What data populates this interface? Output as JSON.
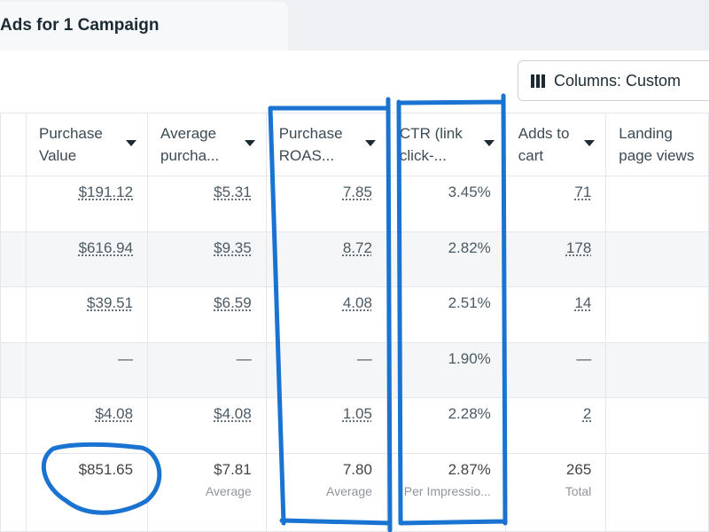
{
  "tab": {
    "title": "Ads for 1 Campaign"
  },
  "toolbar": {
    "columns_label": "Columns: Custom"
  },
  "headers": [
    "Purchase Value",
    "Average purcha...",
    "Purchase ROAS...",
    "CTR (link click-...",
    "Adds to cart",
    "Landing page views"
  ],
  "header_lines": [
    [
      "Purchase",
      "Value"
    ],
    [
      "Average",
      "purcha..."
    ],
    [
      "Purchase",
      "ROAS..."
    ],
    [
      "CTR (link",
      "click-..."
    ],
    [
      "Adds to",
      "cart"
    ],
    [
      "Landing",
      "page views"
    ]
  ],
  "rows": [
    [
      "$191.12",
      "$5.31",
      "7.85",
      "3.45%",
      "71",
      ""
    ],
    [
      "$616.94",
      "$9.35",
      "8.72",
      "2.82%",
      "178",
      ""
    ],
    [
      "$39.51",
      "$6.59",
      "4.08",
      "2.51%",
      "14",
      ""
    ],
    [
      "—",
      "—",
      "—",
      "1.90%",
      "—",
      ""
    ],
    [
      "$4.08",
      "$4.08",
      "1.05",
      "2.28%",
      "2",
      ""
    ]
  ],
  "totals": {
    "values": [
      "$851.65",
      "$7.81",
      "7.80",
      "2.87%",
      "265",
      ""
    ],
    "labels": [
      "",
      "Average",
      "Average",
      "Per Impressio...",
      "Total",
      ""
    ]
  },
  "annotation_color": "#1a73d1"
}
